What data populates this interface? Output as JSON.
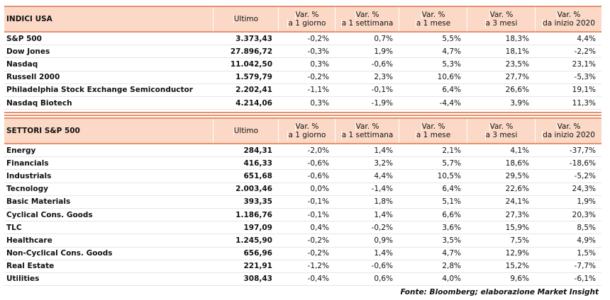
{
  "sections": [
    {
      "header": {
        "title": "INDICI USA",
        "columns": [
          {
            "label": "Ultimo"
          },
          {
            "label": "Var. %",
            "sublabel": "a 1 giorno"
          },
          {
            "label": "Var. %",
            "sublabel": "a 1 settimana"
          },
          {
            "label": "Var. %",
            "sublabel": "a 1 mese"
          },
          {
            "label": "Var. %",
            "sublabel": "a 3 mesi"
          },
          {
            "label": "Var. %",
            "sublabel": "da inizio 2020"
          }
        ]
      },
      "rows": [
        [
          "S&P 500",
          "3.373,43",
          "-0,2%",
          "0,7%",
          "5,5%",
          "18,3%",
          "4,4%"
        ],
        [
          "Dow Jones",
          "27.896,72",
          "-0,3%",
          "1,9%",
          "4,7%",
          "18,1%",
          "-2,2%"
        ],
        [
          "Nasdaq",
          "11.042,50",
          "0,3%",
          "-0,6%",
          "5,3%",
          "23,5%",
          "23,1%"
        ],
        [
          "Russell 2000",
          "1.579,79",
          "-0,2%",
          "2,3%",
          "10,6%",
          "27,7%",
          "-5,3%"
        ],
        [
          "Philadelphia Stock Exchange Semiconductor",
          "2.202,41",
          "-1,1%",
          "-0,1%",
          "6,4%",
          "26,6%",
          "19,1%"
        ],
        [
          "Nasdaq Biotech",
          "4.214,06",
          "0,3%",
          "-1,9%",
          "-4,4%",
          "3,9%",
          "11,3%"
        ]
      ]
    },
    {
      "header": {
        "title": "SETTORI S&P 500",
        "columns": [
          {
            "label": "Ultimo"
          },
          {
            "label": "Var. %",
            "sublabel": "a 1 giorno"
          },
          {
            "label": "Var. %",
            "sublabel": "a 1 settimana"
          },
          {
            "label": "Var. %",
            "sublabel": "a 1 mese"
          },
          {
            "label": "Var. %",
            "sublabel": "a 3 mesi"
          },
          {
            "label": "Var. %",
            "sublabel": "da inizio 2020"
          }
        ]
      },
      "rows": [
        [
          "Energy",
          "284,31",
          "-2,0%",
          "1,4%",
          "2,1%",
          "4,1%",
          "-37,7%"
        ],
        [
          "Financials",
          "416,33",
          "-0,6%",
          "3,2%",
          "5,7%",
          "18,6%",
          "-18,6%"
        ],
        [
          "Industrials",
          "651,68",
          "-0,6%",
          "4,4%",
          "10,5%",
          "29,5%",
          "-5,2%"
        ],
        [
          "Tecnology",
          "2.003,46",
          "0,0%",
          "-1,4%",
          "6,4%",
          "22,6%",
          "24,3%"
        ],
        [
          "Basic Materials",
          "393,35",
          "-0,1%",
          "1,8%",
          "5,1%",
          "24,1%",
          "1,9%"
        ],
        [
          "Cyclical Cons. Goods",
          "1.186,76",
          "-0,1%",
          "1,4%",
          "6,6%",
          "27,3%",
          "20,3%"
        ],
        [
          "TLC",
          "197,09",
          "0,4%",
          "-0,2%",
          "3,6%",
          "15,9%",
          "8,5%"
        ],
        [
          "Healthcare",
          "1.245,90",
          "-0,2%",
          "0,9%",
          "3,5%",
          "7,5%",
          "4,9%"
        ],
        [
          "Non-Cyclical Cons. Goods",
          "656,96",
          "-0,2%",
          "1,4%",
          "4,7%",
          "12,9%",
          "1,5%"
        ],
        [
          "Real Estate",
          "221,91",
          "-1,2%",
          "-0,6%",
          "2,8%",
          "15,2%",
          "-7,7%"
        ],
        [
          "Utilities",
          "308,43",
          "-0,4%",
          "0,6%",
          "4,0%",
          "9,6%",
          "-6,1%"
        ]
      ]
    }
  ],
  "footer": "Fonte: Bloomberg; elaborazione Market Insight"
}
